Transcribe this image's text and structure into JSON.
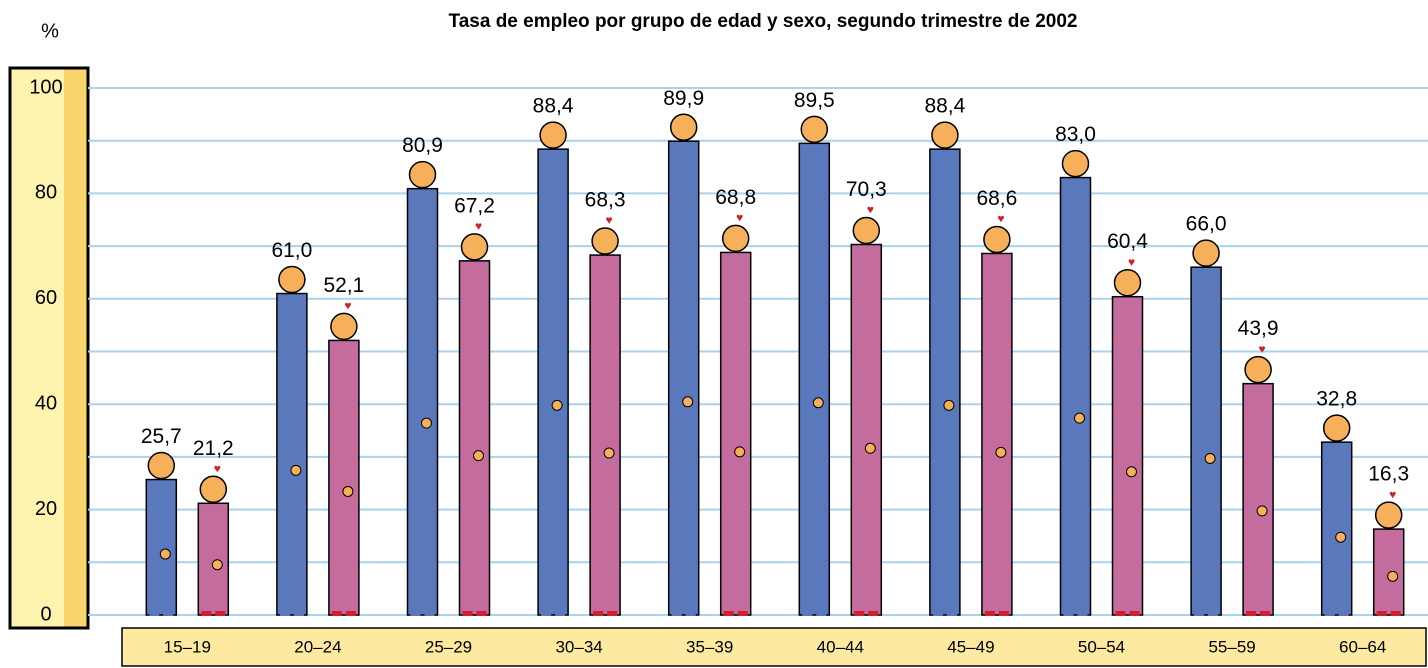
{
  "chart_data": {
    "type": "bar",
    "title": "Tasa de empleo por grupo de edad y sexo, segundo trimestre de 2002",
    "y_label": "%",
    "categories": [
      "15–19",
      "20–24",
      "25–29",
      "30–34",
      "35–39",
      "40–44",
      "45–49",
      "50–54",
      "55–59",
      "60–64"
    ],
    "series": [
      {
        "color": "#5a78bc",
        "values": [
          25.7,
          61.0,
          80.9,
          88.4,
          89.9,
          89.5,
          88.4,
          83.0,
          66.0,
          32.8
        ],
        "value_labels": [
          "25,7",
          "61,0",
          "80,9",
          "88,4",
          "89,9",
          "89,5",
          "88,4",
          "83,0",
          "66,0",
          "32,8"
        ]
      },
      {
        "color": "#c46c9e",
        "values": [
          21.2,
          52.1,
          67.2,
          68.3,
          68.8,
          70.3,
          68.6,
          60.4,
          43.9,
          16.3
        ],
        "value_labels": [
          "21,2",
          "52,1",
          "67,2",
          "68,3",
          "68,8",
          "70,3",
          "68,6",
          "60,4",
          "43,9",
          "16,3"
        ]
      }
    ],
    "ylim": [
      0,
      100
    ],
    "yticks": [
      0,
      20,
      40,
      60,
      80,
      100
    ],
    "minor_yticks": [
      10,
      30,
      50,
      70,
      90
    ],
    "grid": true
  }
}
